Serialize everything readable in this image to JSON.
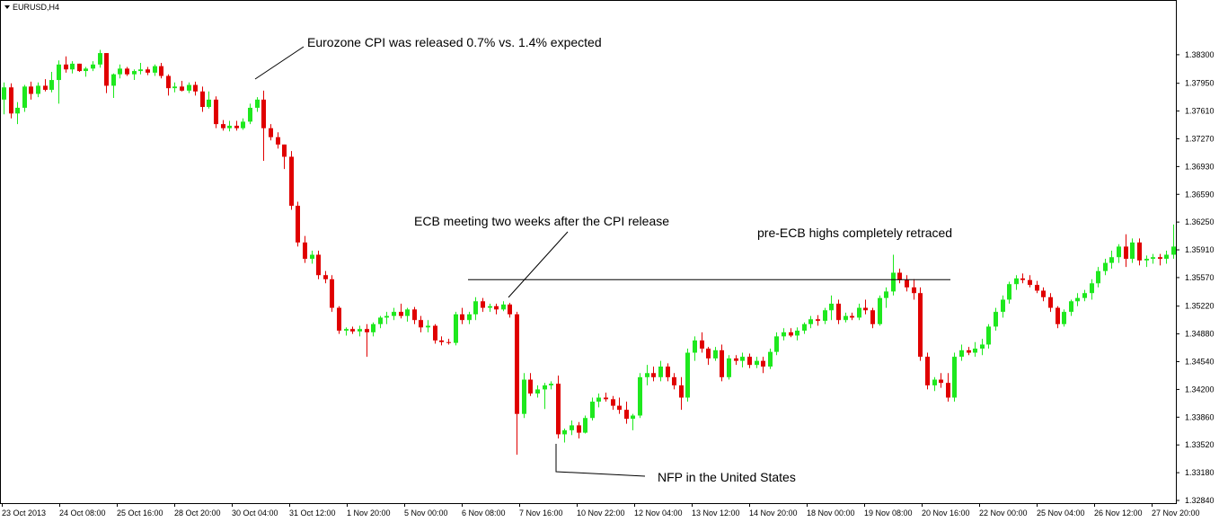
{
  "chart_data": {
    "type": "candlestick",
    "title": "EURUSD,H4",
    "colors": {
      "bull": "#1ee81e",
      "bear": "#e00000",
      "wick_bull": "#1ee81e",
      "wick_bear": "#e00000",
      "axis": "#000000",
      "background": "#ffffff"
    },
    "ylim": [
      1.3284,
      1.3864
    ],
    "y_ticks": [
      "1.38300",
      "1.37950",
      "1.37610",
      "1.37270",
      "1.36930",
      "1.36590",
      "1.36250",
      "1.35910",
      "1.35570",
      "1.35220",
      "1.34880",
      "1.34540",
      "1.34200",
      "1.33860",
      "1.33520",
      "1.33180",
      "1.32840"
    ],
    "x_ticks": [
      "23 Oct 2013",
      "24 Oct 08:00",
      "25 Oct 16:00",
      "28 Oct 20:00",
      "30 Oct 04:00",
      "31 Oct 12:00",
      "1 Nov 20:00",
      "5 Nov 00:00",
      "6 Nov 08:00",
      "7 Nov 16:00",
      "10 Nov 22:00",
      "12 Nov 04:00",
      "13 Nov 12:00",
      "14 Nov 20:00",
      "18 Nov 00:00",
      "19 Nov 08:00",
      "20 Nov 16:00",
      "22 Nov 00:00",
      "25 Nov 04:00",
      "26 Nov 12:00",
      "27 Nov 20:00"
    ],
    "candles_ohlc": [
      [
        1.3775,
        1.3796,
        1.3757,
        1.379
      ],
      [
        1.379,
        1.3795,
        1.3752,
        1.3758
      ],
      [
        1.3758,
        1.3772,
        1.3745,
        1.3765
      ],
      [
        1.3765,
        1.3793,
        1.376,
        1.3791
      ],
      [
        1.3791,
        1.3797,
        1.3775,
        1.3782
      ],
      [
        1.3782,
        1.3796,
        1.3778,
        1.3792
      ],
      [
        1.3792,
        1.38,
        1.3785,
        1.3787
      ],
      [
        1.3787,
        1.3809,
        1.3784,
        1.3799
      ],
      [
        1.3799,
        1.3823,
        1.377,
        1.3818
      ],
      [
        1.3818,
        1.3828,
        1.3808,
        1.3812
      ],
      [
        1.3812,
        1.3822,
        1.3807,
        1.3819
      ],
      [
        1.3819,
        1.3819,
        1.3809,
        1.381
      ],
      [
        1.381,
        1.3815,
        1.3803,
        1.3813
      ],
      [
        1.3813,
        1.3822,
        1.381,
        1.3818
      ],
      [
        1.3818,
        1.3836,
        1.3814,
        1.3832
      ],
      [
        1.3832,
        1.3832,
        1.3783,
        1.3792
      ],
      [
        1.3792,
        1.3807,
        1.3777,
        1.3806
      ],
      [
        1.3806,
        1.3818,
        1.3801,
        1.3813
      ],
      [
        1.3813,
        1.3815,
        1.3804,
        1.3806
      ],
      [
        1.3806,
        1.3812,
        1.3799,
        1.381
      ],
      [
        1.381,
        1.382,
        1.3806,
        1.3812
      ],
      [
        1.3812,
        1.3815,
        1.3805,
        1.3808
      ],
      [
        1.3808,
        1.3818,
        1.3804,
        1.3816
      ],
      [
        1.3816,
        1.382,
        1.3801,
        1.3804
      ],
      [
        1.3804,
        1.3806,
        1.378,
        1.3789
      ],
      [
        1.3789,
        1.3796,
        1.3784,
        1.3791
      ],
      [
        1.3791,
        1.3798,
        1.3785,
        1.3786
      ],
      [
        1.3786,
        1.3796,
        1.3783,
        1.3793
      ],
      [
        1.3793,
        1.3797,
        1.378,
        1.3785
      ],
      [
        1.3785,
        1.3791,
        1.376,
        1.3766
      ],
      [
        1.3766,
        1.3785,
        1.3764,
        1.3775
      ],
      [
        1.3775,
        1.3779,
        1.374,
        1.3745
      ],
      [
        1.3745,
        1.375,
        1.3737,
        1.374
      ],
      [
        1.374,
        1.3749,
        1.3736,
        1.3743
      ],
      [
        1.3743,
        1.3749,
        1.3737,
        1.374
      ],
      [
        1.374,
        1.3752,
        1.3738,
        1.3748
      ],
      [
        1.3748,
        1.377,
        1.3745,
        1.3765
      ],
      [
        1.3765,
        1.3778,
        1.376,
        1.3775
      ],
      [
        1.3775,
        1.3786,
        1.37,
        1.374
      ],
      [
        1.374,
        1.3745,
        1.3725,
        1.3729
      ],
      [
        1.3729,
        1.3735,
        1.3715,
        1.372
      ],
      [
        1.372,
        1.372,
        1.369,
        1.3705
      ],
      [
        1.3705,
        1.3712,
        1.364,
        1.3645
      ],
      [
        1.3645,
        1.365,
        1.3595,
        1.36
      ],
      [
        1.36,
        1.3608,
        1.3575,
        1.358
      ],
      [
        1.358,
        1.359,
        1.3574,
        1.3585
      ],
      [
        1.3585,
        1.359,
        1.3555,
        1.356
      ],
      [
        1.356,
        1.3565,
        1.355,
        1.3555
      ],
      [
        1.3555,
        1.356,
        1.3515,
        1.352
      ],
      [
        1.352,
        1.3522,
        1.3488,
        1.3492
      ],
      [
        1.3492,
        1.3496,
        1.3486,
        1.3494
      ],
      [
        1.3494,
        1.3497,
        1.3488,
        1.3491
      ],
      [
        1.3491,
        1.3498,
        1.3485,
        1.3494
      ],
      [
        1.3494,
        1.35,
        1.346,
        1.349
      ],
      [
        1.349,
        1.3502,
        1.3485,
        1.35
      ],
      [
        1.35,
        1.351,
        1.3495,
        1.3508
      ],
      [
        1.3508,
        1.3515,
        1.35,
        1.351
      ],
      [
        1.351,
        1.352,
        1.3505,
        1.3515
      ],
      [
        1.3515,
        1.3525,
        1.3507,
        1.351
      ],
      [
        1.351,
        1.352,
        1.3503,
        1.3518
      ],
      [
        1.3518,
        1.3521,
        1.35,
        1.3505
      ],
      [
        1.3505,
        1.351,
        1.349,
        1.3496
      ],
      [
        1.3496,
        1.3505,
        1.349,
        1.3498
      ],
      [
        1.3498,
        1.35,
        1.3476,
        1.348
      ],
      [
        1.348,
        1.3485,
        1.3474,
        1.3478
      ],
      [
        1.3478,
        1.3482,
        1.3475,
        1.3477
      ],
      [
        1.3477,
        1.3515,
        1.3474,
        1.3512
      ],
      [
        1.3512,
        1.352,
        1.35,
        1.3505
      ],
      [
        1.3505,
        1.3515,
        1.35,
        1.3512
      ],
      [
        1.3512,
        1.3533,
        1.3505,
        1.3528
      ],
      [
        1.3528,
        1.3532,
        1.3515,
        1.352
      ],
      [
        1.352,
        1.3525,
        1.3515,
        1.3522
      ],
      [
        1.3522,
        1.3525,
        1.3512,
        1.3518
      ],
      [
        1.3518,
        1.3528,
        1.3516,
        1.3524
      ],
      [
        1.3524,
        1.3526,
        1.3508,
        1.3512
      ],
      [
        1.3512,
        1.3515,
        1.334,
        1.339
      ],
      [
        1.339,
        1.344,
        1.3385,
        1.3432
      ],
      [
        1.3432,
        1.344,
        1.3412,
        1.3415
      ],
      [
        1.3415,
        1.3425,
        1.341,
        1.342
      ],
      [
        1.342,
        1.3428,
        1.3396,
        1.3425
      ],
      [
        1.3425,
        1.343,
        1.342,
        1.3427
      ],
      [
        1.3427,
        1.3437,
        1.336,
        1.3365
      ],
      [
        1.3365,
        1.3372,
        1.3355,
        1.337
      ],
      [
        1.337,
        1.3382,
        1.3364,
        1.3376
      ],
      [
        1.3376,
        1.338,
        1.336,
        1.3367
      ],
      [
        1.3367,
        1.3388,
        1.3366,
        1.3385
      ],
      [
        1.3385,
        1.341,
        1.3382,
        1.3405
      ],
      [
        1.3405,
        1.3415,
        1.3398,
        1.341
      ],
      [
        1.341,
        1.3416,
        1.3405,
        1.3408
      ],
      [
        1.3408,
        1.3412,
        1.3395,
        1.34
      ],
      [
        1.34,
        1.341,
        1.339,
        1.3395
      ],
      [
        1.3395,
        1.3405,
        1.3378,
        1.3384
      ],
      [
        1.3384,
        1.339,
        1.337,
        1.3388
      ],
      [
        1.3388,
        1.344,
        1.3385,
        1.3435
      ],
      [
        1.3435,
        1.345,
        1.3425,
        1.344
      ],
      [
        1.344,
        1.3448,
        1.343,
        1.3435
      ],
      [
        1.3435,
        1.3455,
        1.343,
        1.3448
      ],
      [
        1.3448,
        1.3452,
        1.343,
        1.3435
      ],
      [
        1.3435,
        1.344,
        1.342,
        1.3425
      ],
      [
        1.3425,
        1.3435,
        1.3395,
        1.341
      ],
      [
        1.341,
        1.347,
        1.3405,
        1.3465
      ],
      [
        1.3465,
        1.3485,
        1.3455,
        1.348
      ],
      [
        1.348,
        1.349,
        1.3465,
        1.347
      ],
      [
        1.347,
        1.3472,
        1.345,
        1.3458
      ],
      [
        1.3458,
        1.3472,
        1.3455,
        1.3468
      ],
      [
        1.3468,
        1.3475,
        1.343,
        1.3435
      ],
      [
        1.3435,
        1.3462,
        1.3432,
        1.3458
      ],
      [
        1.3458,
        1.3462,
        1.345,
        1.3455
      ],
      [
        1.3455,
        1.3465,
        1.3447,
        1.346
      ],
      [
        1.346,
        1.3464,
        1.3446,
        1.345
      ],
      [
        1.345,
        1.346,
        1.3446,
        1.3455
      ],
      [
        1.3455,
        1.346,
        1.344,
        1.3448
      ],
      [
        1.3448,
        1.347,
        1.3445,
        1.3466
      ],
      [
        1.3466,
        1.349,
        1.3462,
        1.3485
      ],
      [
        1.3485,
        1.3495,
        1.348,
        1.349
      ],
      [
        1.349,
        1.3495,
        1.3484,
        1.3486
      ],
      [
        1.3486,
        1.3496,
        1.348,
        1.3492
      ],
      [
        1.3492,
        1.3502,
        1.3488,
        1.35
      ],
      [
        1.35,
        1.351,
        1.3495,
        1.3506
      ],
      [
        1.3506,
        1.3511,
        1.3498,
        1.3504
      ],
      [
        1.3504,
        1.352,
        1.35,
        1.3517
      ],
      [
        1.3517,
        1.3535,
        1.3505,
        1.3525
      ],
      [
        1.3525,
        1.353,
        1.35,
        1.3505
      ],
      [
        1.3505,
        1.3514,
        1.3502,
        1.351
      ],
      [
        1.351,
        1.3514,
        1.3505,
        1.3508
      ],
      [
        1.3508,
        1.3525,
        1.3505,
        1.352
      ],
      [
        1.352,
        1.353,
        1.3512,
        1.3517
      ],
      [
        1.3517,
        1.352,
        1.3495,
        1.35
      ],
      [
        1.35,
        1.3535,
        1.3498,
        1.3532
      ],
      [
        1.3532,
        1.3545,
        1.352,
        1.354
      ],
      [
        1.354,
        1.3585,
        1.3535,
        1.3563
      ],
      [
        1.3563,
        1.3568,
        1.355,
        1.3554
      ],
      [
        1.3554,
        1.356,
        1.354,
        1.3545
      ],
      [
        1.3545,
        1.3555,
        1.353,
        1.3538
      ],
      [
        1.3538,
        1.3545,
        1.3455,
        1.346
      ],
      [
        1.346,
        1.3465,
        1.342,
        1.3425
      ],
      [
        1.3425,
        1.3435,
        1.3418,
        1.3432
      ],
      [
        1.3432,
        1.344,
        1.3422,
        1.3428
      ],
      [
        1.3428,
        1.344,
        1.3405,
        1.341
      ],
      [
        1.341,
        1.3465,
        1.3405,
        1.346
      ],
      [
        1.346,
        1.3475,
        1.3455,
        1.3468
      ],
      [
        1.3468,
        1.3472,
        1.3462,
        1.3465
      ],
      [
        1.3465,
        1.3478,
        1.346,
        1.347
      ],
      [
        1.347,
        1.3482,
        1.3462,
        1.3475
      ],
      [
        1.3475,
        1.35,
        1.347,
        1.3497
      ],
      [
        1.3497,
        1.352,
        1.3492,
        1.3515
      ],
      [
        1.3515,
        1.3535,
        1.3508,
        1.353
      ],
      [
        1.353,
        1.3552,
        1.3525,
        1.3549
      ],
      [
        1.3549,
        1.356,
        1.3542,
        1.3556
      ],
      [
        1.3556,
        1.3562,
        1.355,
        1.3554
      ],
      [
        1.3554,
        1.356,
        1.3545,
        1.3548
      ],
      [
        1.3548,
        1.3553,
        1.3538,
        1.3541
      ],
      [
        1.3541,
        1.3545,
        1.3528,
        1.3533
      ],
      [
        1.3533,
        1.3538,
        1.3515,
        1.352
      ],
      [
        1.352,
        1.3522,
        1.3495,
        1.35
      ],
      [
        1.35,
        1.3518,
        1.3497,
        1.3515
      ],
      [
        1.3515,
        1.353,
        1.351,
        1.3528
      ],
      [
        1.3528,
        1.3538,
        1.3522,
        1.3532
      ],
      [
        1.3532,
        1.3542,
        1.3528,
        1.3538
      ],
      [
        1.3538,
        1.3555,
        1.353,
        1.355
      ],
      [
        1.355,
        1.357,
        1.3545,
        1.3565
      ],
      [
        1.3565,
        1.358,
        1.356,
        1.3575
      ],
      [
        1.3575,
        1.359,
        1.3568,
        1.3582
      ],
      [
        1.3582,
        1.3598,
        1.3575,
        1.3595
      ],
      [
        1.3595,
        1.361,
        1.357,
        1.358
      ],
      [
        1.358,
        1.3605,
        1.3575,
        1.36
      ],
      [
        1.36,
        1.3605,
        1.3572,
        1.3578
      ],
      [
        1.3578,
        1.3584,
        1.357,
        1.358
      ],
      [
        1.358,
        1.3586,
        1.3574,
        1.3582
      ],
      [
        1.3582,
        1.3586,
        1.3572,
        1.358
      ],
      [
        1.358,
        1.359,
        1.3574,
        1.3585
      ],
      [
        1.3585,
        1.3622,
        1.358,
        1.3595
      ]
    ],
    "annotations": [
      {
        "text": "Eurozone CPI was released 0.7% vs. 1.4% expected",
        "candle_index": 37
      },
      {
        "text": "ECB meeting two weeks after the CPI release",
        "candle_index": 74
      },
      {
        "text": "pre-ECB highs completely retraced",
        "candle_index": 141
      },
      {
        "text": "NFP in the United  States",
        "candle_index": 80
      }
    ],
    "resistance_level": 1.3555
  }
}
